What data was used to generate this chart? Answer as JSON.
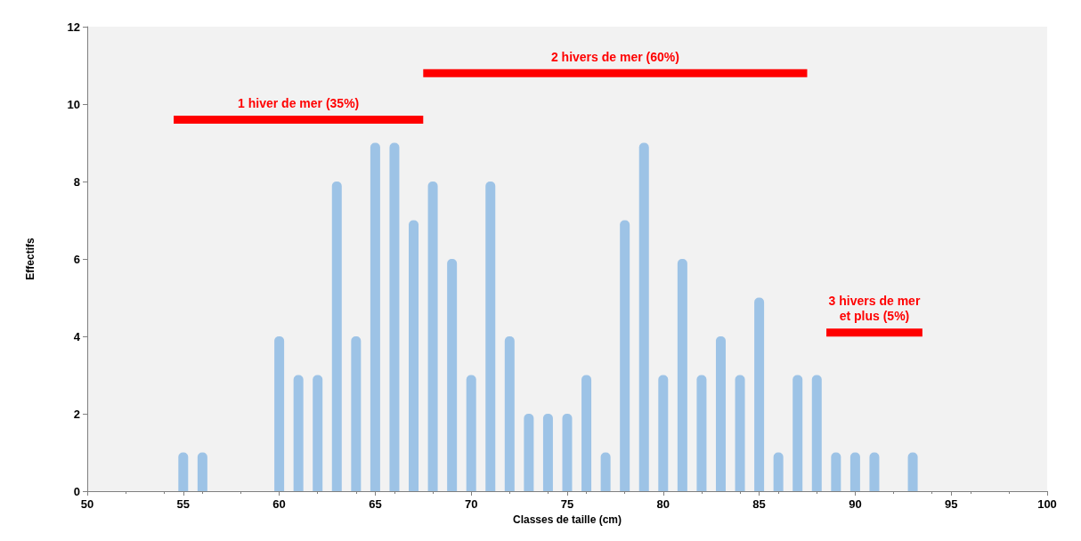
{
  "chart_data": {
    "type": "bar",
    "xlabel": "Classes de taille (cm)",
    "ylabel": "Effectifs",
    "x": [
      55,
      56,
      57,
      58,
      59,
      60,
      61,
      62,
      63,
      64,
      65,
      66,
      67,
      68,
      69,
      70,
      71,
      72,
      73,
      74,
      75,
      76,
      77,
      78,
      79,
      80,
      81,
      82,
      83,
      84,
      85,
      86,
      87,
      88,
      89,
      90,
      91,
      92,
      93
    ],
    "series": [
      {
        "color": "#9dc3e6",
        "values": [
          1,
          1,
          0,
          0,
          0,
          4,
          3,
          3,
          8,
          4,
          9,
          9,
          7,
          8,
          6,
          3,
          8,
          4,
          2,
          2,
          2,
          3,
          1,
          7,
          9,
          3,
          6,
          3,
          4,
          3,
          5,
          1,
          3,
          3,
          1,
          1,
          1,
          0,
          1
        ]
      },
      {
        "type": "line",
        "color": "#ff0000",
        "x": [
          54.5,
          67.5
        ],
        "values": [
          9.6,
          9.6
        ]
      },
      {
        "type": "line",
        "color": "#ff0000",
        "x": [
          67.5,
          87.5
        ],
        "values": [
          10.8,
          10.8
        ]
      },
      {
        "type": "line",
        "color": "#ff0000",
        "x": [
          88.5,
          93.5
        ],
        "values": [
          4.1,
          4.1
        ]
      }
    ],
    "annotations": [
      {
        "text": "1 hiver de mer (35%)",
        "x": 61,
        "y": 9.6
      },
      {
        "text": "2 hivers de mer (60%)",
        "x": 77.5,
        "y": 10.8
      },
      {
        "text": "3 hivers de mer\net plus (5%)",
        "x": 91,
        "y": 4.1
      }
    ],
    "xlim": [
      50,
      100
    ],
    "xticks": [
      50,
      55,
      60,
      65,
      70,
      75,
      80,
      85,
      90,
      95,
      100
    ],
    "ylim": [
      0,
      12
    ],
    "yticks": [
      0,
      2,
      4,
      6,
      8,
      10,
      12
    ],
    "grid": false,
    "marker": "none",
    "line_style": "solid"
  }
}
